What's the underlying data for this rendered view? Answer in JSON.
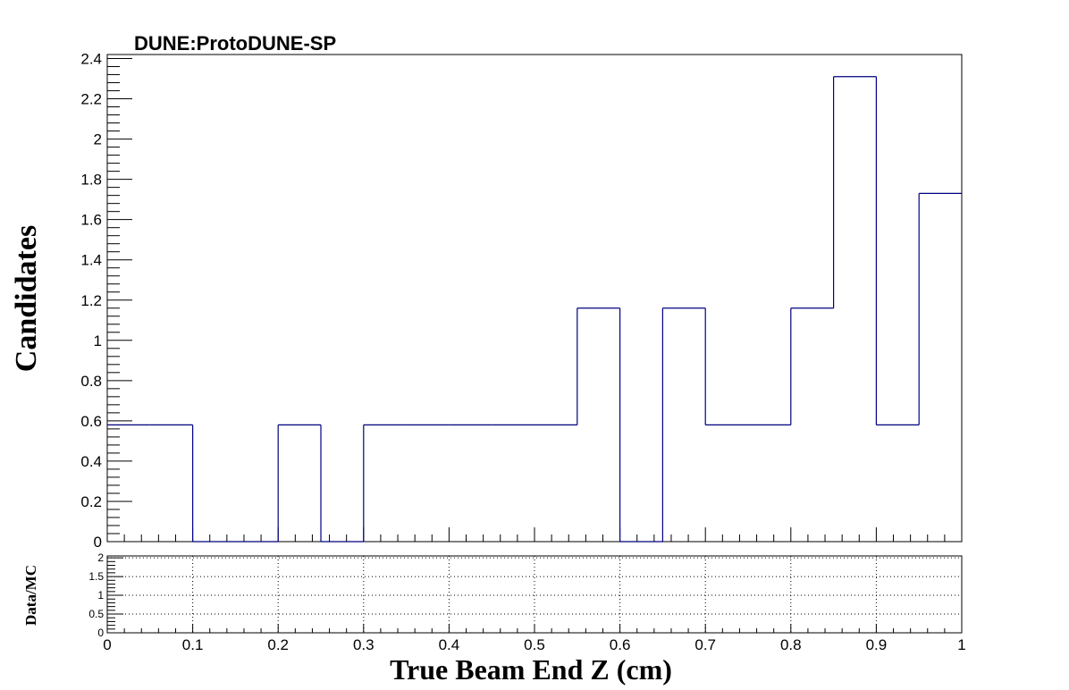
{
  "experiment_label": "DUNE:ProtoDUNE-SP",
  "chart_data": [
    {
      "type": "bar",
      "histogram": true,
      "title": "",
      "xlabel": "",
      "ylabel": "Candidates",
      "xlim": [
        0,
        1
      ],
      "ylim": [
        0,
        2.42
      ],
      "bin_edges": [
        0,
        0.05,
        0.1,
        0.15,
        0.2,
        0.25,
        0.3,
        0.35,
        0.4,
        0.45,
        0.5,
        0.55,
        0.6,
        0.65,
        0.7,
        0.75,
        0.8,
        0.85,
        0.9,
        0.95,
        1.0
      ],
      "values": [
        0.58,
        0.58,
        0,
        0,
        0.58,
        0,
        0.58,
        0.58,
        0.58,
        0.58,
        0.58,
        1.16,
        0,
        1.16,
        0.58,
        0.58,
        1.16,
        2.31,
        0.58,
        1.73
      ],
      "x_ticks": [
        "0",
        "0.1",
        "0.2",
        "0.3",
        "0.4",
        "0.5",
        "0.6",
        "0.7",
        "0.8",
        "0.9",
        "1"
      ],
      "y_ticks": [
        "0",
        "0.2",
        "0.4",
        "0.6",
        "0.8",
        "1",
        "1.2",
        "1.4",
        "1.6",
        "1.8",
        "2",
        "2.2",
        "2.4"
      ],
      "grid": false,
      "line_color": "#000080"
    },
    {
      "type": "line",
      "title": "",
      "xlabel": "True Beam End Z (cm)",
      "ylabel": "Data/MC",
      "xlim": [
        0,
        1
      ],
      "ylim": [
        0,
        2.05
      ],
      "x_ticks": [
        "0",
        "0.1",
        "0.2",
        "0.3",
        "0.4",
        "0.5",
        "0.6",
        "0.7",
        "0.8",
        "0.9",
        "1"
      ],
      "y_ticks": [
        "0",
        "0.5",
        "1",
        "1.5",
        "2"
      ],
      "grid": true,
      "series": []
    }
  ]
}
